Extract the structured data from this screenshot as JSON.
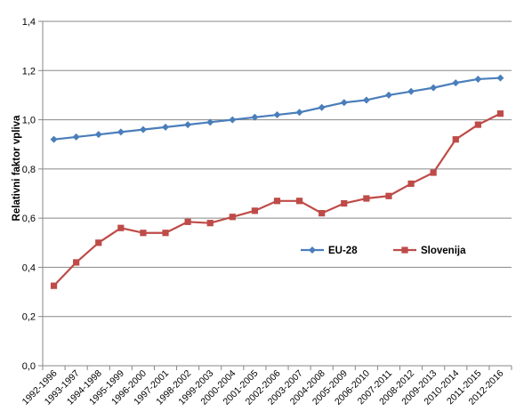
{
  "chart_data": {
    "type": "line",
    "title": "",
    "xlabel": "",
    "ylabel": "Relativni faktor vpliva",
    "ylim": [
      0,
      1.4
    ],
    "yticks": [
      "0,0",
      "0,2",
      "0,4",
      "0,6",
      "0,8",
      "1,0",
      "1,2",
      "1,4"
    ],
    "grid": true,
    "legend_position": "center-right",
    "categories": [
      "1992-1996",
      "1993-1997",
      "1994-1998",
      "1995-1999",
      "1996-2000",
      "1997-2001",
      "1998-2002",
      "1999-2003",
      "2000-2004",
      "2001-2005",
      "2002-2006",
      "2003-2007",
      "2004-2008",
      "2005-2009",
      "2006-2010",
      "2007-2011",
      "2008-2012",
      "2009-2013",
      "2010-2014",
      "2011-2015",
      "2012-2016"
    ],
    "series": [
      {
        "name": "EU-28",
        "color": "#4a7ebb",
        "marker": "diamond",
        "values": [
          0.92,
          0.93,
          0.94,
          0.95,
          0.96,
          0.97,
          0.98,
          0.99,
          1.0,
          1.01,
          1.02,
          1.03,
          1.05,
          1.07,
          1.08,
          1.1,
          1.115,
          1.13,
          1.15,
          1.165,
          1.17
        ]
      },
      {
        "name": "Slovenija",
        "color": "#be4b48",
        "marker": "square",
        "values": [
          0.325,
          0.42,
          0.5,
          0.56,
          0.54,
          0.54,
          0.585,
          0.58,
          0.605,
          0.63,
          0.67,
          0.67,
          0.62,
          0.66,
          0.68,
          0.69,
          0.74,
          0.785,
          0.92,
          0.98,
          1.025
        ]
      }
    ]
  }
}
